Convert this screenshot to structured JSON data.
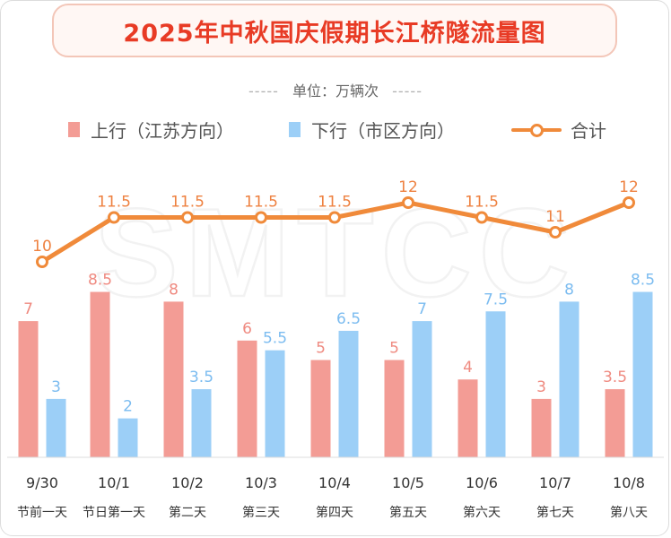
{
  "title": "2025年中秋国庆假期长江桥隧流量图",
  "unit": "单位：万辆次",
  "unit_dashes": "-----",
  "legend": {
    "up": "上行（江苏方向）",
    "down": "下行（市区方向）",
    "total": "合计"
  },
  "watermark": "SMTCC",
  "colors": {
    "up": "#f39c95",
    "down": "#9ccff7",
    "total": "#f08a3a",
    "title": "#e83b25"
  },
  "chart_data": {
    "type": "bar",
    "categories": [
      "9/30",
      "10/1",
      "10/2",
      "10/3",
      "10/4",
      "10/5",
      "10/6",
      "10/7",
      "10/8"
    ],
    "sublabels": [
      "节前一天",
      "节日第一天",
      "第二天",
      "第三天",
      "第四天",
      "第五天",
      "第六天",
      "第七天",
      "第八天"
    ],
    "series": [
      {
        "name": "上行（江苏方向）",
        "type": "bar",
        "values": [
          7,
          8.5,
          8,
          6,
          5,
          5,
          4,
          3,
          3.5
        ]
      },
      {
        "name": "下行（市区方向）",
        "type": "bar",
        "values": [
          3,
          2,
          3.5,
          5.5,
          6.5,
          7,
          7.5,
          8,
          8.5
        ]
      },
      {
        "name": "合计",
        "type": "line",
        "values": [
          10,
          11.5,
          11.5,
          11.5,
          11.5,
          12,
          11.5,
          11,
          12
        ]
      }
    ],
    "labels": {
      "up": [
        "7",
        "8.5",
        "8",
        "6",
        "5",
        "5",
        "4",
        "3",
        "3.5"
      ],
      "down": [
        "3",
        "2",
        "3.5",
        "5.5",
        "6.5",
        "7",
        "7.5",
        "8",
        "8.5"
      ],
      "total": [
        "10",
        "11.5",
        "11.5",
        "11.5",
        "11.5",
        "12",
        "11.5",
        "11",
        "12"
      ]
    },
    "grid": false,
    "legend_position": "top"
  }
}
